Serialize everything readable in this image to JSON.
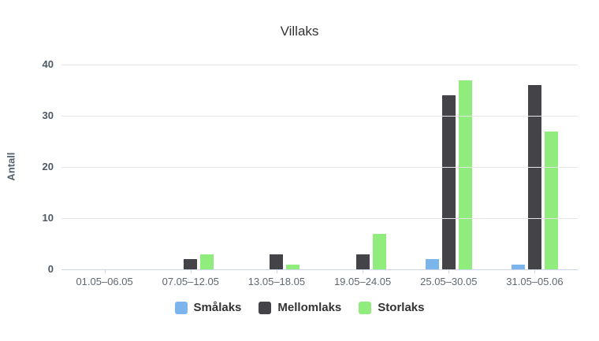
{
  "chart_data": {
    "type": "bar",
    "title": "Villaks",
    "ylabel": "Antall",
    "xlabel": "",
    "categories": [
      "01.05–06.05",
      "07.05–12.05",
      "13.05–18.05",
      "19.05–24.05",
      "25.05–30.05",
      "31.05–05.06"
    ],
    "series": [
      {
        "name": "Smålaks",
        "color": "#7cb5ec",
        "values": [
          0,
          0,
          0,
          0,
          2,
          1
        ]
      },
      {
        "name": "Mellomlaks",
        "color": "#434348",
        "values": [
          0,
          2,
          3,
          3,
          34,
          36
        ]
      },
      {
        "name": "Storlaks",
        "color": "#90ed7d",
        "values": [
          0,
          3,
          1,
          7,
          37,
          27
        ]
      }
    ],
    "ylim": [
      0,
      40
    ],
    "yticks": [
      40,
      30,
      20,
      10,
      0
    ],
    "grid": true,
    "legend_position": "bottom-center"
  },
  "style_colors": {
    "gridline": "#e6e6e6",
    "axis_line": "#ccd6eb",
    "title_text": "#333333",
    "ytick_text": "#4e5865",
    "xtick_text": "#5f6873",
    "legend_text": "#333333"
  }
}
